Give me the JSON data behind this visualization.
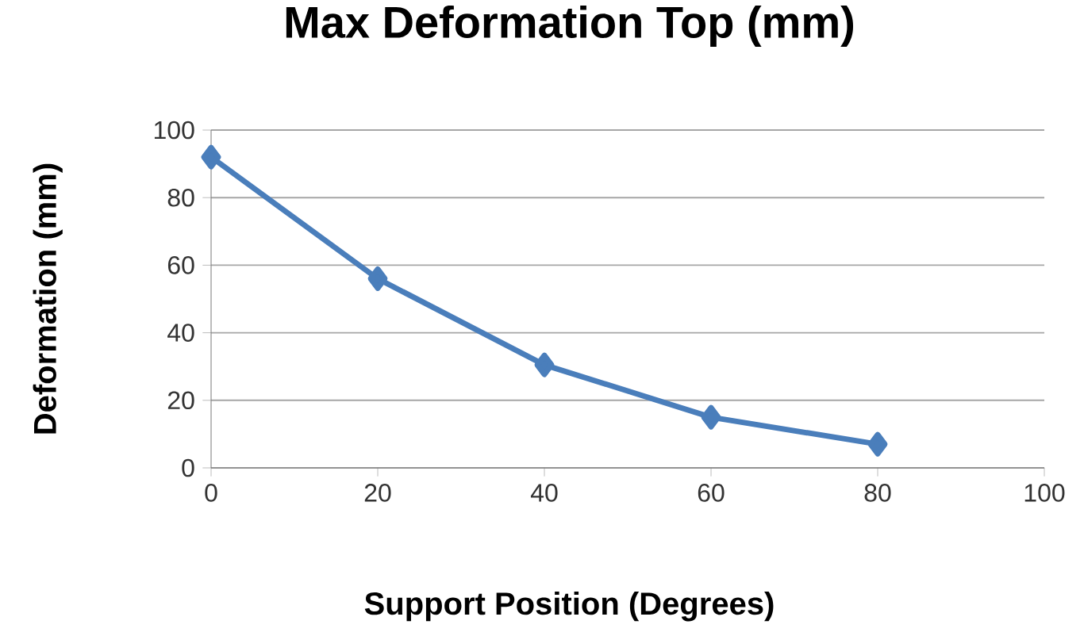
{
  "chart_data": {
    "type": "line",
    "title": "Max Deformation Top (mm)",
    "xlabel": "Support Position (Degrees)",
    "ylabel": "Deformation (mm)",
    "x": [
      0,
      20,
      40,
      60,
      80
    ],
    "series": [
      {
        "color": "#4a7ebb",
        "values": [
          92,
          56,
          30.5,
          15,
          7
        ]
      }
    ],
    "xlim": [
      0,
      100
    ],
    "xticks": [
      0,
      20,
      40,
      60,
      80,
      100
    ],
    "ylim": [
      0,
      100
    ],
    "yticks": [
      0,
      20,
      40,
      60,
      80,
      100
    ],
    "grid": "y",
    "marker": "diamond",
    "line_style": "solid"
  }
}
